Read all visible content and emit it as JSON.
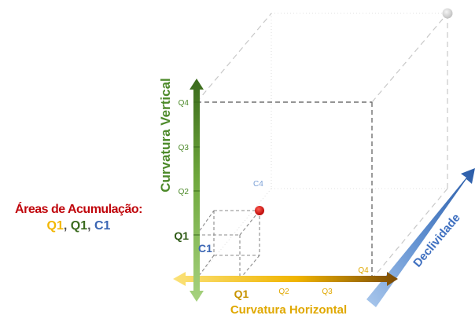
{
  "accumulation": {
    "title": "Áreas de Acumulação:",
    "item1": "Q1",
    "item2": "Q1",
    "item3": "C1",
    "separator": ", "
  },
  "axes": {
    "vertical": {
      "label": "Curvatura Vertical",
      "ticks": [
        "Q1",
        "Q2",
        "Q3",
        "Q4"
      ],
      "color": "#4d8a2a"
    },
    "horizontal": {
      "label": "Curvatura Horizontal",
      "ticks": [
        "Q1",
        "Q2",
        "Q3",
        "Q4"
      ],
      "color": "#e0a800"
    },
    "depth": {
      "label": "Declividade",
      "ticks": [
        "C1",
        "C4"
      ],
      "color": "#3f70c0"
    }
  },
  "highlight_color": "#c0070d"
}
